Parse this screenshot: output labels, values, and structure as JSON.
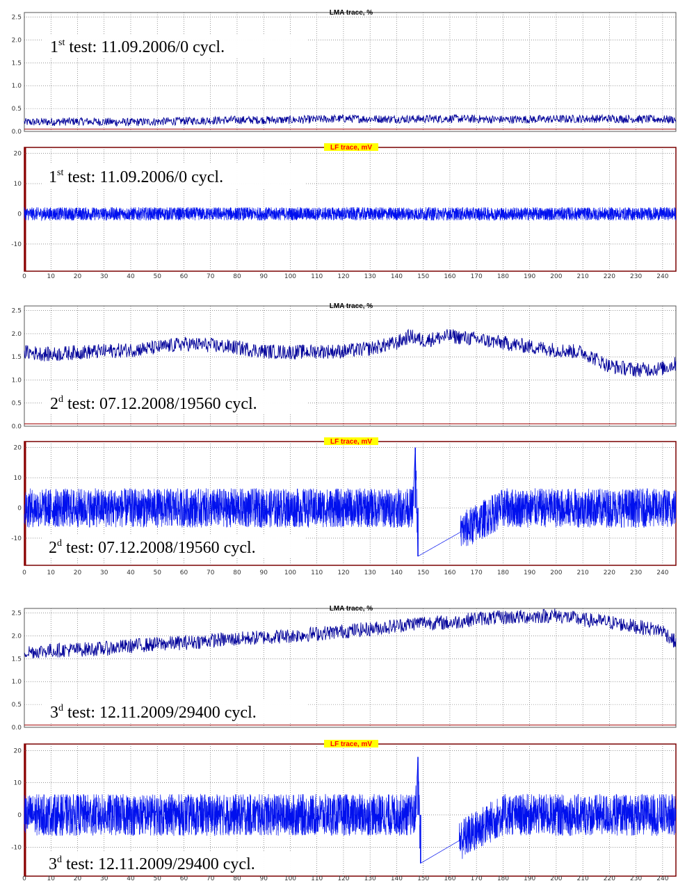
{
  "chart_data": [
    {
      "type": "line",
      "title": "LMA trace, %",
      "ylim": [
        0,
        2.6
      ],
      "yticks": [
        "0.0",
        "0.5",
        "1.0",
        "1.5",
        "2.0",
        "2.5"
      ],
      "xlim": [
        0,
        245
      ],
      "annotation": {
        "prefix": "1",
        "sup": "st",
        "text": " test: 11.09.2006/0 cycl."
      },
      "series": [
        {
          "x": [
            0,
            20,
            40,
            60,
            80,
            100,
            120,
            140,
            160,
            180,
            200,
            220,
            245
          ],
          "values": [
            0.2,
            0.22,
            0.2,
            0.23,
            0.25,
            0.25,
            0.28,
            0.27,
            0.28,
            0.26,
            0.27,
            0.28,
            0.26
          ]
        }
      ]
    },
    {
      "type": "line",
      "title": "LF trace, mV",
      "ylim": [
        -19,
        22
      ],
      "yticks": [
        "-10",
        "0",
        "10",
        "20"
      ],
      "xlim": [
        0,
        245
      ],
      "xticks": [
        "0",
        "10",
        "20",
        "30",
        "40",
        "50",
        "60",
        "70",
        "80",
        "90",
        "100",
        "110",
        "120",
        "130",
        "140",
        "150",
        "160",
        "170",
        "180",
        "190",
        "200",
        "210",
        "220",
        "230",
        "240"
      ],
      "annotation": {
        "prefix": "1",
        "sup": "st",
        "text": " test: 11.09.2006/0 cycl."
      },
      "series": [
        {
          "x": [
            0,
            60,
            120,
            180,
            245
          ],
          "values": [
            0,
            0,
            0,
            0,
            0
          ]
        }
      ]
    },
    {
      "type": "line",
      "title": "LMA trace, %",
      "ylim": [
        0,
        2.6
      ],
      "yticks": [
        "0.0",
        "0.5",
        "1.0",
        "1.5",
        "2.0",
        "2.5"
      ],
      "xlim": [
        0,
        245
      ],
      "annotation": {
        "prefix": "2",
        "sup": "d",
        "text": "  test: 07.12.2008/19560 cycl."
      },
      "series": [
        {
          "x": [
            0,
            10,
            20,
            30,
            40,
            50,
            60,
            70,
            80,
            90,
            100,
            110,
            120,
            130,
            140,
            145,
            150,
            160,
            170,
            180,
            190,
            200,
            210,
            220,
            230,
            240,
            245
          ],
          "values": [
            1.6,
            1.55,
            1.6,
            1.62,
            1.65,
            1.7,
            1.78,
            1.75,
            1.7,
            1.62,
            1.6,
            1.62,
            1.62,
            1.68,
            1.8,
            1.95,
            1.85,
            1.95,
            1.88,
            1.8,
            1.72,
            1.65,
            1.6,
            1.3,
            1.22,
            1.25,
            1.35
          ]
        }
      ]
    },
    {
      "type": "line",
      "title": "LF trace, mV",
      "ylim": [
        -19,
        22
      ],
      "yticks": [
        "-10",
        "0",
        "10",
        "20"
      ],
      "xlim": [
        0,
        245
      ],
      "xticks": [
        "0",
        "10",
        "20",
        "30",
        "40",
        "50",
        "60",
        "70",
        "80",
        "90",
        "100",
        "110",
        "120",
        "130",
        "140",
        "150",
        "160",
        "170",
        "180",
        "190",
        "200",
        "210",
        "220",
        "230",
        "240"
      ],
      "annotation": {
        "prefix": "2",
        "sup": "d",
        "text": "  test: 07.12.2008/19560 cycl."
      },
      "series": [
        {
          "x": [
            0,
            60,
            120,
            146,
            147,
            148,
            180,
            245
          ],
          "values": [
            0,
            0,
            0,
            0,
            20,
            -16,
            0,
            0
          ]
        }
      ]
    },
    {
      "type": "line",
      "title": "LMA trace, %",
      "ylim": [
        0,
        2.6
      ],
      "yticks": [
        "0.0",
        "0.5",
        "1.0",
        "1.5",
        "2.0",
        "2.5"
      ],
      "xlim": [
        0,
        245
      ],
      "annotation": {
        "prefix": "3",
        "sup": "d",
        "text": "  test: 12.11.2009/29400 cycl."
      },
      "series": [
        {
          "x": [
            0,
            10,
            20,
            30,
            40,
            50,
            60,
            70,
            80,
            90,
            100,
            110,
            120,
            130,
            140,
            150,
            160,
            170,
            180,
            190,
            200,
            210,
            220,
            230,
            240,
            245
          ],
          "values": [
            1.65,
            1.68,
            1.7,
            1.72,
            1.78,
            1.82,
            1.85,
            1.9,
            1.93,
            1.97,
            2.0,
            2.05,
            2.1,
            2.15,
            2.22,
            2.3,
            2.28,
            2.38,
            2.4,
            2.42,
            2.45,
            2.35,
            2.3,
            2.2,
            2.12,
            1.85
          ]
        }
      ]
    },
    {
      "type": "line",
      "title": "LF trace, mV",
      "ylim": [
        -19,
        22
      ],
      "yticks": [
        "-10",
        "0",
        "10",
        "20"
      ],
      "xlim": [
        0,
        245
      ],
      "xticks": [
        "0",
        "10",
        "20",
        "30",
        "40",
        "50",
        "60",
        "70",
        "80",
        "90",
        "100",
        "110",
        "120",
        "130",
        "140",
        "150",
        "160",
        "170",
        "180",
        "190",
        "200",
        "210",
        "220",
        "230",
        "240"
      ],
      "annotation": {
        "prefix": "3",
        "sup": "d",
        "text": "  test: 12.11.2009/29400 cycl."
      },
      "series": [
        {
          "x": [
            0,
            60,
            120,
            147,
            148,
            149,
            180,
            245
          ],
          "values": [
            0,
            0,
            0,
            0,
            18,
            -15,
            0,
            0
          ]
        }
      ]
    }
  ]
}
